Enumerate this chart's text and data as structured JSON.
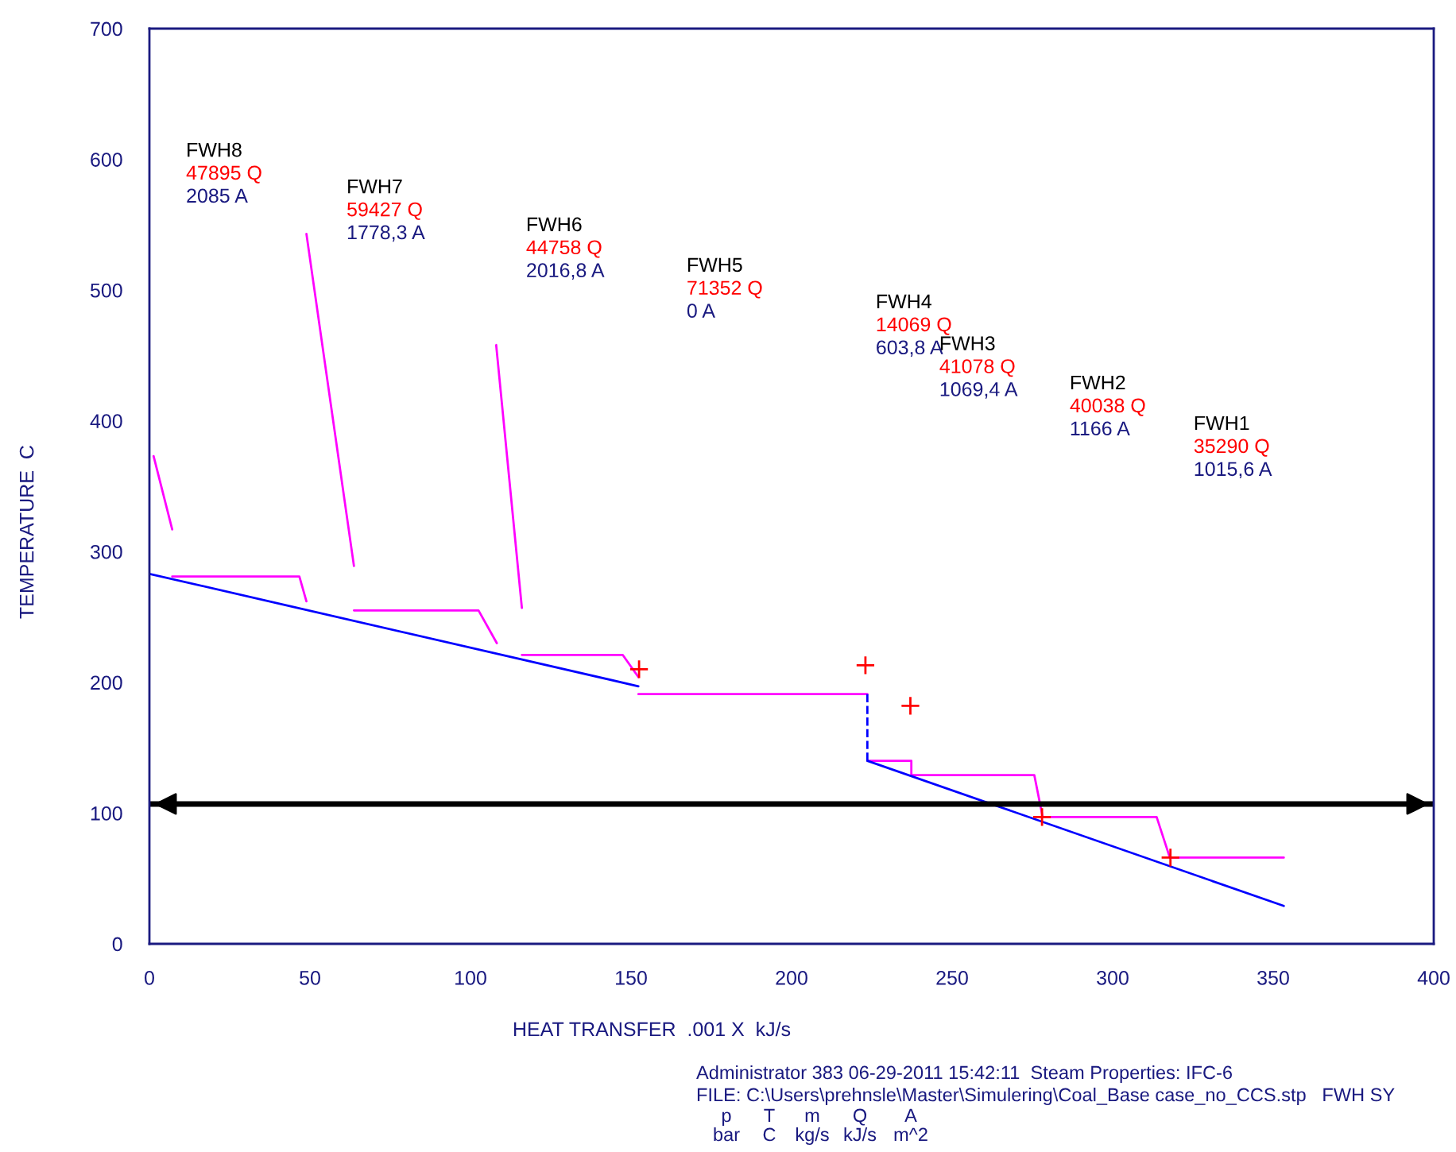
{
  "chart_data": {
    "type": "line",
    "xlabel": "HEAT TRANSFER  .001 X  kJ/s",
    "ylabel": "TEMPERATURE  C",
    "xlim": [
      0,
      400
    ],
    "xticks": [
      0,
      50,
      100,
      150,
      200,
      250,
      300,
      350,
      400
    ],
    "ylim": [
      0,
      700
    ],
    "yticks": [
      0,
      100,
      200,
      300,
      400,
      500,
      600,
      700
    ],
    "grid": false,
    "legend": false,
    "series": [
      {
        "color": "#ff00ff",
        "line_style": "solid",
        "x": [
          1.3,
          7.1,
          null,
          7.1,
          46.7,
          48.9,
          null,
          48.9,
          63.7,
          null,
          63.7,
          102.5,
          108.2,
          null,
          108,
          116,
          null,
          116,
          147.4,
          152.3,
          null,
          152.3,
          223.6,
          null,
          223.6,
          237.3,
          237.3,
          275.6,
          278.2,
          313.7,
          317.8,
          353.3
        ],
        "values": [
          373,
          317,
          null,
          281,
          281,
          262,
          null,
          543,
          289,
          null,
          255,
          255,
          230,
          null,
          458,
          257,
          null,
          221,
          221,
          204,
          null,
          191,
          191,
          null,
          140,
          140,
          129,
          129,
          97,
          97,
          66,
          66
        ]
      },
      {
        "color": "#0000ff",
        "line_style": "solid",
        "x": [
          0,
          152.3,
          null,
          223.6,
          353.3
        ],
        "values": [
          283,
          197,
          null,
          140,
          29
        ]
      },
      {
        "color": "#0000ff",
        "line_style": "dashed",
        "x": [
          223.6,
          223.6
        ],
        "values": [
          191,
          140
        ]
      },
      {
        "type": "scatter",
        "color": "#ff0000",
        "marker": "cross",
        "x": [
          152.5,
          223,
          237,
          278,
          318
        ],
        "values": [
          210,
          213,
          182,
          97,
          66
        ]
      }
    ],
    "ref_lines": [
      {
        "axis": "y",
        "value": 107,
        "color": "#000000",
        "line_style": "solid"
      }
    ],
    "annotations": [
      "FWH8",
      "47895 Q",
      "2085 A",
      "FWH7",
      "59427 Q",
      "1778,3 A",
      "FWH6",
      "44758 Q",
      "2016,8 A",
      "FWH5",
      "71352 Q",
      "0 A",
      "FWH4",
      "14069 Q",
      "603,8 A",
      "FWH3",
      "41078 Q",
      "1069,4 A",
      "FWH2",
      "40038 Q",
      "1166 A",
      "FWH1",
      "35290 Q",
      "1015,6 A",
      "Administrator 383 06-29-2011 15:42:11  Steam Properties: IFC-6",
      "FILE: C:\\Users\\prehnsle\\Master\\Simulering\\Coal_Base case_no_CCS.stp   FWH SY",
      "p",
      "T",
      "m",
      "Q",
      "A",
      "bar",
      "C",
      "kg/s",
      "kJ/s",
      "m^2"
    ]
  }
}
